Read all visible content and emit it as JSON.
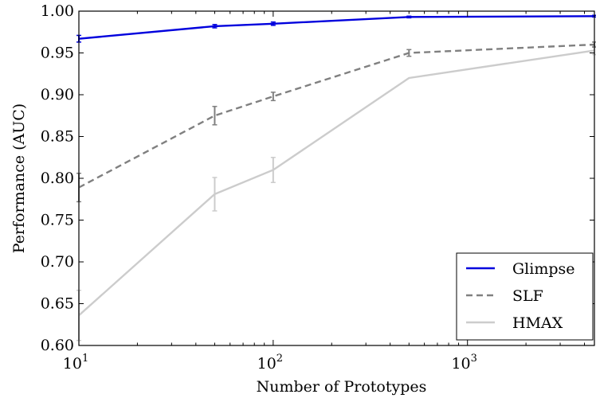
{
  "chart_data": {
    "type": "line",
    "xlabel": "Number of Prototypes",
    "ylabel": "Performance (AUC)",
    "xscale": "log",
    "xlim": [
      10,
      4500
    ],
    "ylim": [
      0.6,
      1.0
    ],
    "grid": false,
    "legend_position": "bottom-right",
    "x_ticks": [
      {
        "base": "10",
        "exp": "1",
        "value": 10
      },
      {
        "base": "10",
        "exp": "2",
        "value": 100
      },
      {
        "base": "10",
        "exp": "3",
        "value": 1000
      }
    ],
    "y_ticks": [
      "0.60",
      "0.65",
      "0.70",
      "0.75",
      "0.80",
      "0.85",
      "0.90",
      "0.95",
      "1.00"
    ],
    "x": [
      10,
      50,
      100,
      500,
      4500
    ],
    "series": [
      {
        "name": "Glimpse",
        "color": "#0000dd",
        "style": "solid",
        "values": [
          0.967,
          0.982,
          0.985,
          0.993,
          0.994
        ],
        "errors": [
          0.004,
          0.002,
          0.002,
          0.001,
          0.001
        ]
      },
      {
        "name": "SLF",
        "color": "#808080",
        "style": "dashed",
        "values": [
          0.789,
          0.875,
          0.898,
          0.95,
          0.96
        ],
        "errors": [
          0.017,
          0.011,
          0.005,
          0.004,
          0.003
        ]
      },
      {
        "name": "HMAX",
        "color": "#cccccc",
        "style": "solid",
        "values": [
          0.636,
          0.781,
          0.81,
          0.92,
          0.953
        ],
        "errors": [
          0.03,
          0.02,
          0.015,
          0.0,
          0.005
        ]
      }
    ]
  }
}
